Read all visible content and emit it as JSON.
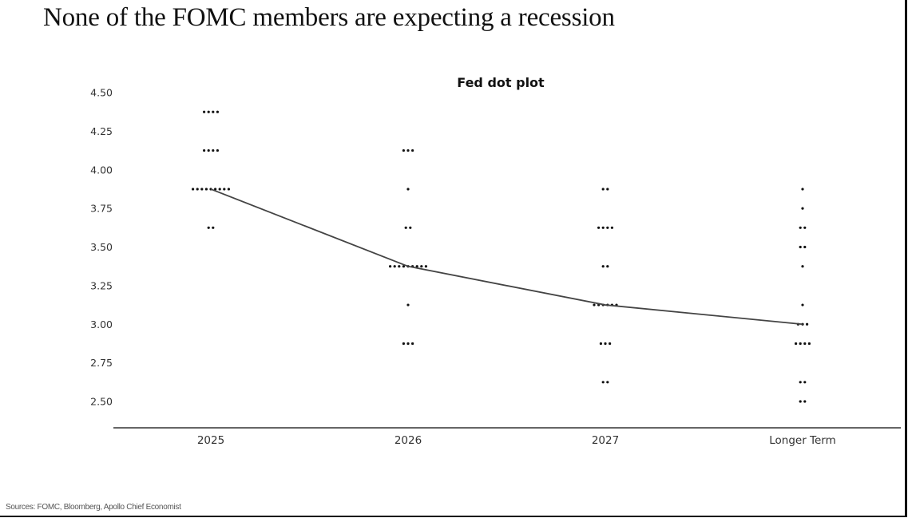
{
  "page": {
    "headline": "None of the FOMC members are expecting a recession",
    "source": "Sources: FOMC, Bloomberg, Apollo Chief Economist"
  },
  "colors": {
    "dot": "#111111",
    "median_line": "#444444",
    "axis": "#333333",
    "text": "#333333"
  },
  "chart_data": {
    "type": "scatter",
    "title": "Fed dot plot",
    "xlabel": "",
    "ylabel": "",
    "categories": [
      "2025",
      "2026",
      "2027",
      "Longer Term"
    ],
    "ylim": [
      2.5,
      4.5
    ],
    "yticks": [
      4.5,
      4.25,
      4.0,
      3.75,
      3.5,
      3.25,
      3.0,
      2.75,
      2.5
    ],
    "ytick_labels": [
      "4.50",
      "4.25",
      "4.00",
      "3.75",
      "3.50",
      "3.25",
      "3.00",
      "2.75",
      "2.50"
    ],
    "grid": false,
    "legend": "none",
    "series": [
      {
        "name": "Participant projections (dot counts)",
        "dots": [
          [
            {
              "y": 4.375,
              "count": 4
            },
            {
              "y": 4.125,
              "count": 4
            },
            {
              "y": 3.875,
              "count": 9
            },
            {
              "y": 3.625,
              "count": 2
            }
          ],
          [
            {
              "y": 4.125,
              "count": 3
            },
            {
              "y": 3.875,
              "count": 1
            },
            {
              "y": 3.625,
              "count": 2
            },
            {
              "y": 3.375,
              "count": 9
            },
            {
              "y": 3.125,
              "count": 1
            },
            {
              "y": 2.875,
              "count": 3
            }
          ],
          [
            {
              "y": 3.875,
              "count": 2
            },
            {
              "y": 3.625,
              "count": 4
            },
            {
              "y": 3.375,
              "count": 2
            },
            {
              "y": 3.125,
              "count": 6
            },
            {
              "y": 2.875,
              "count": 3
            },
            {
              "y": 2.625,
              "count": 2
            }
          ],
          [
            {
              "y": 3.875,
              "count": 1
            },
            {
              "y": 3.75,
              "count": 1
            },
            {
              "y": 3.625,
              "count": 2
            },
            {
              "y": 3.5,
              "count": 2
            },
            {
              "y": 3.375,
              "count": 1
            },
            {
              "y": 3.125,
              "count": 1
            },
            {
              "y": 3.0,
              "count": 3
            },
            {
              "y": 2.875,
              "count": 4
            },
            {
              "y": 2.625,
              "count": 2
            },
            {
              "y": 2.5,
              "count": 2
            }
          ]
        ]
      },
      {
        "name": "Median",
        "type": "line",
        "values": [
          3.875,
          3.375,
          3.125,
          3.0
        ]
      }
    ]
  }
}
